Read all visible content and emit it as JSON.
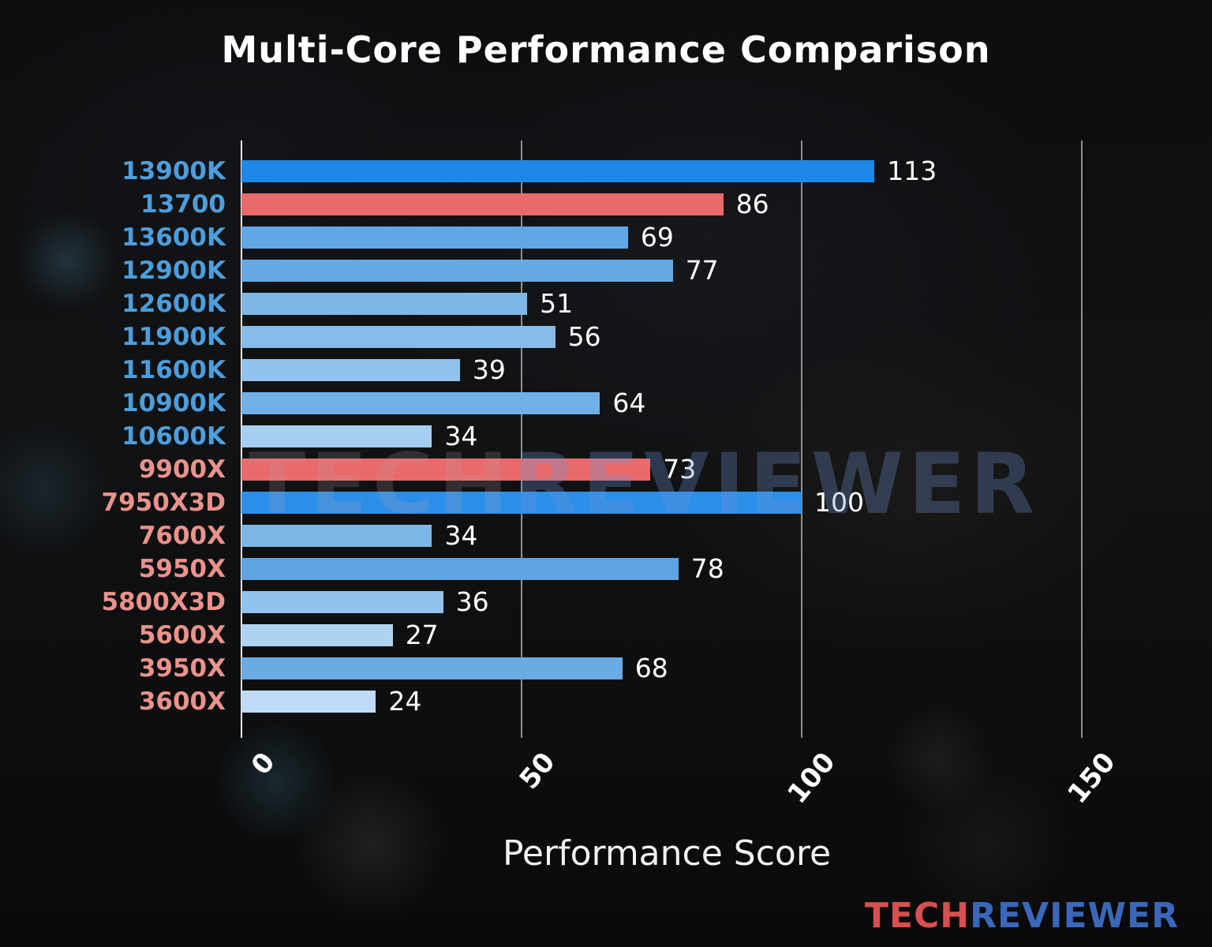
{
  "title": "Multi-Core Performance Comparison",
  "watermark": {
    "left": "TECH",
    "right": "REVIEWER"
  },
  "logo": {
    "left": "TECH",
    "right": "REVIEWER"
  },
  "chart_data": {
    "type": "bar",
    "orientation": "horizontal",
    "title": "Multi-Core Performance Comparison",
    "xlabel": "Performance Score",
    "xlim": [
      0,
      150
    ],
    "xticks": [
      0,
      50,
      100,
      150
    ],
    "grid": true,
    "legend": false,
    "categories": [
      "13900K",
      "13700",
      "13600K",
      "12900K",
      "12600K",
      "11900K",
      "11600K",
      "10900K",
      "10600K",
      "9900X",
      "7950X3D",
      "7600X",
      "5950X",
      "5800X3D",
      "5600X",
      "3950X",
      "3600X"
    ],
    "values": [
      113,
      86,
      69,
      77,
      51,
      56,
      39,
      64,
      34,
      73,
      100,
      34,
      78,
      36,
      27,
      68,
      24
    ],
    "bar_colors": [
      "#1f87e8",
      "#e86a6a",
      "#61a7e5",
      "#66aae3",
      "#7db7e8",
      "#85bce9",
      "#92c3ec",
      "#70b0e6",
      "#a6cef0",
      "#e86a6a",
      "#2b8fe8",
      "#7db7e8",
      "#5da4e3",
      "#92c3ec",
      "#aed3f2",
      "#69ace4",
      "#bfdbf5"
    ],
    "label_colors": [
      "#4d9edb",
      "#4d9edb",
      "#4d9edb",
      "#4d9edb",
      "#4d9edb",
      "#4d9edb",
      "#4d9edb",
      "#4d9edb",
      "#4d9edb",
      "#ea928c",
      "#ea928c",
      "#ea928c",
      "#ea928c",
      "#ea928c",
      "#ea928c",
      "#ea928c",
      "#ea928c"
    ],
    "value_label_color": "#ffffff",
    "axis_color": "#e6e6e6",
    "gridline_color": "#8f8f8f"
  }
}
